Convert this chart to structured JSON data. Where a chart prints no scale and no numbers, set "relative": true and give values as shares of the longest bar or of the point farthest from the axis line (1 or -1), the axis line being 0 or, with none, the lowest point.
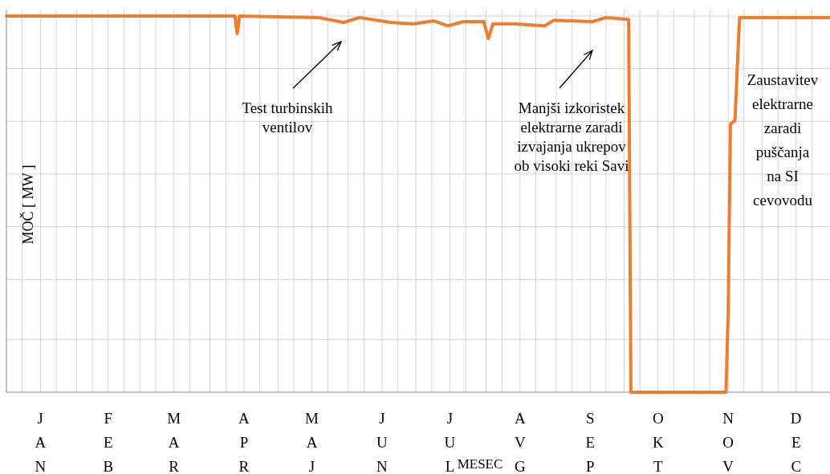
{
  "chart_data": {
    "type": "line",
    "relative": true,
    "xlabel": "MESEC",
    "ylabel": "MOČ [ MW ]",
    "xlim": [
      "--01-01",
      "--12-31"
    ],
    "xticks": [
      {
        "value": "--01-08",
        "label": null
      },
      {
        "value": "--01-16",
        "label": "JAN"
      },
      {
        "value": "--01-23",
        "label": null
      },
      {
        "value": "--02-01",
        "label": null
      },
      {
        "value": "--02-08",
        "label": null
      },
      {
        "value": "--02-15",
        "label": "FEB"
      },
      {
        "value": "--02-22",
        "label": null
      },
      {
        "value": "--03-01",
        "label": null
      },
      {
        "value": "--03-08",
        "label": null
      },
      {
        "value": "--03-16",
        "label": "MAR"
      },
      {
        "value": "--03-23",
        "label": null
      },
      {
        "value": "--04-01",
        "label": null
      },
      {
        "value": "--04-08",
        "label": null
      },
      {
        "value": "--04-16",
        "label": "APR"
      },
      {
        "value": "--04-23",
        "label": null
      },
      {
        "value": "--05-01",
        "label": null
      },
      {
        "value": "--05-08",
        "label": null
      },
      {
        "value": "--05-16",
        "label": "MAJ"
      },
      {
        "value": "--05-23",
        "label": null
      },
      {
        "value": "--06-01",
        "label": null
      },
      {
        "value": "--06-08",
        "label": null
      },
      {
        "value": "--06-16",
        "label": "JUN"
      },
      {
        "value": "--06-23",
        "label": null
      },
      {
        "value": "--07-01",
        "label": null
      },
      {
        "value": "--07-08",
        "label": null
      },
      {
        "value": "--07-16",
        "label": "JUL"
      },
      {
        "value": "--07-23",
        "label": null
      },
      {
        "value": "--08-01",
        "label": null
      },
      {
        "value": "--08-08",
        "label": null
      },
      {
        "value": "--08-16",
        "label": "AVG"
      },
      {
        "value": "--08-23",
        "label": null
      },
      {
        "value": "--09-01",
        "label": null
      },
      {
        "value": "--09-08",
        "label": null
      },
      {
        "value": "--09-16",
        "label": "SEP"
      },
      {
        "value": "--09-23",
        "label": null
      },
      {
        "value": "--10-01",
        "label": null
      },
      {
        "value": "--10-08",
        "label": null
      },
      {
        "value": "--10-16",
        "label": "OKT"
      },
      {
        "value": "--10-23",
        "label": null
      },
      {
        "value": "--11-01",
        "label": null
      },
      {
        "value": "--11-08",
        "label": null
      },
      {
        "value": "--11-16",
        "label": "NOV"
      },
      {
        "value": "--11-23",
        "label": null
      },
      {
        "value": "--12-01",
        "label": null
      },
      {
        "value": "--12-08",
        "label": null
      },
      {
        "value": "--12-16",
        "label": "DEC"
      },
      {
        "value": "--12-23",
        "label": null
      }
    ],
    "grid": true,
    "line_style": "solid",
    "series": [
      {
        "color": "#ed7d31",
        "x": [
          "--01-01",
          "--04-12",
          "--04-13",
          "--04-14",
          "--05-19",
          "--05-30",
          "--06-06",
          "--06-20",
          "--06-30",
          "--07-09",
          "--07-15",
          "--07-22",
          "--07-31",
          "--08-02",
          "--08-04",
          "--08-13",
          "--08-27",
          "--08-31",
          "--09-17",
          "--09-23",
          "--10-03",
          "--10-04",
          "--11-15",
          "--11-16",
          "--11-17",
          "--11-19",
          "--11-21",
          "--12-31"
        ],
        "values": [
          1,
          1,
          0.953,
          1,
          0.996,
          0.983,
          0.996,
          0.983,
          0.979,
          0.987,
          0.974,
          0.985,
          0.985,
          0.94,
          0.979,
          0.979,
          0.974,
          0.989,
          0.985,
          0.996,
          0.991,
          0,
          0,
          0.211,
          0.712,
          0.723,
          0.996,
          0.996
        ]
      }
    ],
    "annotations": [
      "Test turbinskih\nventilov",
      "Manjši izkoristek\nelektrarne zaradi\nizvajanja ukrepov\nob visoki reki Savi",
      "Zaustavitev\nelektrarne\nzaradi\npuščanja\nna SI\ncevovodu"
    ]
  }
}
